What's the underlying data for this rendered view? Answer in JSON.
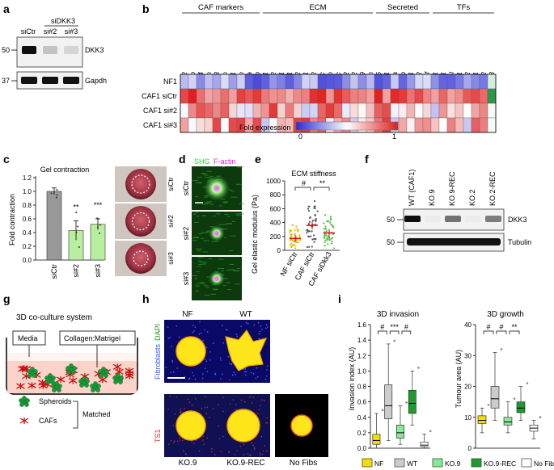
{
  "panels": {
    "a": {
      "letter": "a",
      "header": "siDKK3",
      "lanes": [
        "siCtr",
        "si#2",
        "si#3"
      ],
      "markers": [
        "50",
        "37"
      ],
      "bands": [
        "DKK3",
        "Gapdh"
      ],
      "dkk3_intensity": [
        1.0,
        0.18,
        0.1
      ]
    },
    "b": {
      "letter": "b",
      "groups": [
        "CAF markers",
        "ECM",
        "Secreted",
        "TFs"
      ],
      "genes": [
        "Acta2",
        "Fap",
        "S100a4",
        "Tagln",
        "Cd248",
        "Vim",
        "Thy1",
        "Pdpn",
        "Pdgfra",
        "Pdgfrb",
        "Col1a1",
        "Col1a2",
        "Col2a1",
        "Col5a1",
        "Col5a2",
        "Fn1",
        "Thbs2",
        "Tnc",
        "Dcn",
        "Sparc",
        "Loxl2",
        "Mmp2",
        "Mmp9",
        "Postn",
        "Il6",
        "Il11",
        "Il1a",
        "Il1b",
        "Cxcl1",
        "Ccl2",
        "Lif",
        "Hsf1",
        "Sqstm1",
        "Csl",
        "Twist1",
        "Twist2",
        "Snai1",
        "Snai2",
        "Dkk3"
      ],
      "rows": [
        "NF1",
        "CAF1 siCtr",
        "CAF1 si#2",
        "CAF1 si#3"
      ],
      "legend_label": "Fold expression",
      "legend_ticks": [
        "0",
        "1"
      ],
      "colors": {
        "low": "#2b2bd6",
        "mid": "#ffffff",
        "high": "#e01f1f",
        "dkk3_high": "#2a9a4a"
      }
    },
    "c": {
      "letter": "c",
      "title": "Gel contraction",
      "ylabel": "Fold contraction",
      "yticks": [
        "0.0",
        "0.2",
        "0.4",
        "0.6",
        "0.8",
        "1.0",
        "1.2"
      ],
      "sig": [
        "**",
        "***"
      ],
      "images": [
        "siCtr",
        "si#2",
        "si#3"
      ]
    },
    "d": {
      "letter": "d",
      "legend": [
        "SHG",
        "F-actin"
      ],
      "rows": [
        "siCtr",
        "si#2",
        "si#3"
      ]
    },
    "e": {
      "letter": "e",
      "title": "ECM stiffness",
      "ylabel": "Gel elastic modulus (Pa)",
      "yticks": [
        "0",
        "200",
        "400",
        "600",
        "800",
        "1000"
      ],
      "sig": [
        "#",
        "**"
      ]
    },
    "f": {
      "letter": "f",
      "lanes": [
        "WT (CAF1)",
        "KO.9",
        "KO.9-REC",
        "KO.2",
        "KO.2-REC"
      ],
      "markers": [
        "50",
        "50"
      ],
      "bands": [
        "DKK3",
        "Tubulin"
      ],
      "dkk3_intensity": [
        1.0,
        0.0,
        0.55,
        0.0,
        0.5
      ]
    },
    "g": {
      "letter": "g",
      "title": "3D co-culture system",
      "labels": [
        "Media",
        "Collagen:Matrigel"
      ],
      "legend": [
        "Spheroids",
        "CAFs"
      ],
      "bracket": "Matched"
    },
    "h": {
      "letter": "h",
      "top_labels": [
        "NF",
        "WT"
      ],
      "bottom_labels": [
        "KO.9",
        "KO.9-REC",
        "No Fibs"
      ],
      "left_top": [
        "Fibroblasts",
        "DAPI"
      ],
      "left_bottom": "TS1"
    },
    "i": {
      "letter": "i",
      "left_title": "3D invasion",
      "left_ylabel": "Invasion index (AU)",
      "left_yticks": [
        "0.0",
        "0.2",
        "0.4",
        "0.6",
        "0.8",
        "1.0",
        "1.2",
        "1.4",
        "1.6"
      ],
      "left_sig": [
        "#",
        "***",
        "#"
      ],
      "right_title": "3D growth",
      "right_ylabel": "Tumour area (AU)",
      "right_yticks": [
        "0",
        "10",
        "20",
        "30",
        "40"
      ],
      "right_sig": [
        "#",
        "#",
        "**"
      ],
      "legend": [
        "NF",
        "WT",
        "KO.9",
        "KO.9-REC",
        "No Fibs"
      ],
      "colors": {
        "NF": "#f0e000",
        "WT": "#cccccc",
        "KO.9": "#88ea98",
        "KO.9-REC": "#1f9a2f",
        "No Fibs": "#ffffff"
      }
    }
  },
  "chart_data": [
    {
      "type": "bar",
      "title": "Gel contraction",
      "ylabel": "Fold contraction",
      "categories": [
        "siCtr",
        "si#2",
        "si#3"
      ],
      "values": [
        1.0,
        0.43,
        0.52
      ],
      "errors": [
        0.05,
        0.14,
        0.08
      ],
      "ylim": [
        0,
        1.2
      ],
      "colors": [
        "#999999",
        "#b8ef9e",
        "#b8ef9e"
      ]
    },
    {
      "type": "scatter",
      "title": "ECM stiffness",
      "ylabel": "Gel elastic modulus (Pa)",
      "categories": [
        "NF siCtr",
        "CAF siCtr",
        "CAF siDkk3"
      ],
      "means": [
        170,
        360,
        250
      ],
      "ylim": [
        0,
        1000
      ],
      "colors": [
        "#d8c400",
        "#555555",
        "#50c050"
      ]
    },
    {
      "type": "box",
      "title": "3D invasion",
      "ylabel": "Invasion index (AU)",
      "categories": [
        "NF",
        "WT",
        "KO.9",
        "KO.9-REC",
        "No Fibs"
      ],
      "boxes": [
        {
          "min": 0.0,
          "q1": 0.05,
          "median": 0.1,
          "q3": 0.18,
          "max": 0.45
        },
        {
          "min": 0.1,
          "q1": 0.38,
          "median": 0.55,
          "q3": 0.82,
          "max": 1.35
        },
        {
          "min": 0.05,
          "q1": 0.13,
          "median": 0.2,
          "q3": 0.3,
          "max": 0.55
        },
        {
          "min": 0.3,
          "q1": 0.45,
          "median": 0.58,
          "q3": 0.75,
          "max": 1.0
        },
        {
          "min": 0.0,
          "q1": 0.02,
          "median": 0.04,
          "q3": 0.08,
          "max": 0.18
        }
      ],
      "ylim": [
        0,
        1.6
      ]
    },
    {
      "type": "box",
      "title": "3D growth",
      "ylabel": "Tumour area (AU)",
      "categories": [
        "NF",
        "WT",
        "KO.9",
        "KO.9-REC",
        "No Fibs"
      ],
      "boxes": [
        {
          "min": 5,
          "q1": 8,
          "median": 9,
          "q3": 10.5,
          "max": 13
        },
        {
          "min": 9,
          "q1": 13,
          "median": 16,
          "q3": 20,
          "max": 31
        },
        {
          "min": 5,
          "q1": 7.5,
          "median": 8.5,
          "q3": 10,
          "max": 15
        },
        {
          "min": 9,
          "q1": 11.5,
          "median": 13,
          "q3": 15,
          "max": 20
        },
        {
          "min": 3,
          "q1": 5.5,
          "median": 6.5,
          "q3": 7.5,
          "max": 9
        }
      ],
      "ylim": [
        0,
        40
      ]
    }
  ]
}
